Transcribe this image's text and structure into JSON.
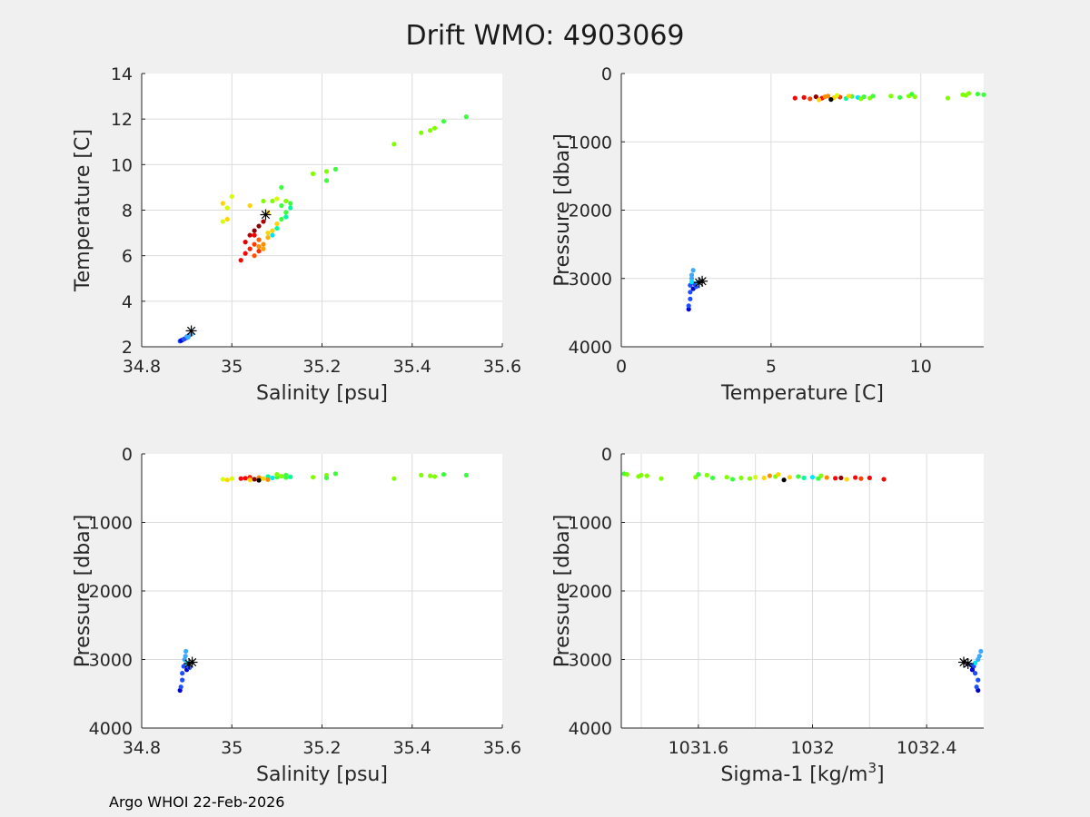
{
  "figure": {
    "title": "Drift WMO: 4903069",
    "footer": "Argo WHOI 22-Feb-2026"
  },
  "colors": {
    "background": "#f0f0f0",
    "plot_background": "#ffffff",
    "grid": "#dcdcdc",
    "axis": "#262626",
    "float_path": [
      "#8b0000",
      "#ff0000",
      "#ff8c00",
      "#ffd400",
      "#d4ff00",
      "#7fff00",
      "#3cff3c",
      "#00ff9c",
      "#00e5ff",
      "#3aaaff",
      "#1e4fff",
      "#0000cd"
    ],
    "marker_star": "#000000"
  },
  "chart_data": [
    {
      "type": "scatter",
      "id": "ts",
      "xlabel": "Salinity [psu]",
      "ylabel": "Temperature [C]",
      "xlim": [
        34.8,
        35.6
      ],
      "ylim": [
        2,
        14
      ],
      "y_reversed": false,
      "xticks": [
        34.8,
        35,
        35.2,
        35.4,
        35.6
      ],
      "xticklabels": [
        "34.8",
        "35",
        "35.2",
        "35.4",
        "35.6"
      ],
      "yticks": [
        2,
        4,
        6,
        8,
        10,
        12,
        14
      ],
      "yticklabels": [
        "2",
        "4",
        "6",
        "8",
        "10",
        "12",
        "14"
      ],
      "xgrid": [
        35,
        35.2,
        35.4
      ],
      "ygrid": [
        4,
        6,
        8,
        10,
        12
      ],
      "points": [
        [
          35.02,
          5.8,
          "#ff0000"
        ],
        [
          35.03,
          6.1,
          "#ff0000"
        ],
        [
          35.04,
          6.3,
          "#ff2000"
        ],
        [
          35.05,
          6.5,
          "#ff4000"
        ],
        [
          35.06,
          6.7,
          "#ff6000"
        ],
        [
          35.03,
          6.6,
          "#e00000"
        ],
        [
          35.04,
          6.9,
          "#c00000"
        ],
        [
          35.05,
          7.1,
          "#8b0000"
        ],
        [
          35.06,
          7.3,
          "#8b0000"
        ],
        [
          35.07,
          7.5,
          "#b00000"
        ],
        [
          35.06,
          6.2,
          "#ff3000"
        ],
        [
          35.07,
          6.5,
          "#ff8c00"
        ],
        [
          35.08,
          6.8,
          "#ffb000"
        ],
        [
          35.09,
          7.1,
          "#ffd400"
        ],
        [
          35.1,
          7.4,
          "#ffd400"
        ],
        [
          35.05,
          6.0,
          "#ff5000"
        ],
        [
          35.07,
          6.3,
          "#ffa000"
        ],
        [
          35.09,
          6.9,
          "#00e5ff"
        ],
        [
          35.1,
          7.2,
          "#00ff9c"
        ],
        [
          35.11,
          7.6,
          "#3cff3c"
        ],
        [
          35.12,
          7.9,
          "#3cff3c"
        ],
        [
          35.13,
          8.1,
          "#00ff9c"
        ],
        [
          35.13,
          8.3,
          "#3cff3c"
        ],
        [
          35.12,
          8.4,
          "#7fff00"
        ],
        [
          35.1,
          8.5,
          "#d4ff00"
        ],
        [
          35.09,
          8.4,
          "#7fff00"
        ],
        [
          35.11,
          8.2,
          "#3cff3c"
        ],
        [
          35.12,
          7.7,
          "#00ff9c"
        ],
        [
          35.08,
          7.0,
          "#ffd400"
        ],
        [
          35.06,
          6.4,
          "#ff8c00"
        ],
        [
          35.11,
          9.0,
          "#3cff3c"
        ],
        [
          35.07,
          8.4,
          "#7fff00"
        ],
        [
          35.04,
          8.2,
          "#ffd400"
        ],
        [
          35.08,
          7.9,
          "#ffd400"
        ],
        [
          35.05,
          6.9,
          "#ff0000"
        ],
        [
          34.98,
          8.3,
          "#ffd400"
        ],
        [
          34.99,
          8.1,
          "#d4ff00"
        ],
        [
          34.99,
          7.6,
          "#ffd400"
        ],
        [
          35.0,
          8.6,
          "#d4ff00"
        ],
        [
          34.98,
          7.5,
          "#d4ff00"
        ],
        [
          35.18,
          9.6,
          "#7fff00"
        ],
        [
          35.21,
          9.7,
          "#7fff00"
        ],
        [
          35.21,
          9.3,
          "#3cff3c"
        ],
        [
          35.23,
          9.8,
          "#3cff3c"
        ],
        [
          35.36,
          10.9,
          "#7fff00"
        ],
        [
          35.42,
          11.4,
          "#7fff00"
        ],
        [
          35.44,
          11.5,
          "#7fff00"
        ],
        [
          35.45,
          11.6,
          "#7fff00"
        ],
        [
          35.47,
          11.9,
          "#3cff3c"
        ],
        [
          35.52,
          12.1,
          "#3cff3c"
        ],
        [
          34.885,
          2.25,
          "#1e4fff"
        ],
        [
          34.89,
          2.3,
          "#1e4fff"
        ],
        [
          34.895,
          2.35,
          "#0000cd"
        ],
        [
          34.9,
          2.4,
          "#1e4fff"
        ],
        [
          34.9,
          2.45,
          "#3aaaff"
        ],
        [
          34.905,
          2.5,
          "#1e4fff"
        ],
        [
          34.91,
          2.55,
          "#3aaaff"
        ],
        [
          34.888,
          2.28,
          "#0000cd"
        ],
        [
          34.893,
          2.33,
          "#1e4fff"
        ],
        [
          34.903,
          2.42,
          "#3aaaff"
        ]
      ],
      "stars": [
        [
          35.075,
          7.8
        ],
        [
          34.91,
          2.7
        ]
      ]
    },
    {
      "type": "scatter",
      "id": "tp",
      "xlabel": "Temperature [C]",
      "ylabel": "Pressure [dbar]",
      "xlim": [
        0,
        12.1
      ],
      "ylim": [
        0,
        4000
      ],
      "y_reversed": true,
      "xticks": [
        0,
        5,
        10
      ],
      "xticklabels": [
        "0",
        "5",
        "10"
      ],
      "yticks": [
        0,
        1000,
        2000,
        3000,
        4000
      ],
      "yticklabels": [
        "0",
        "1000",
        "2000",
        "3000",
        "4000"
      ],
      "xgrid": [
        5,
        10
      ],
      "ygrid": [
        1000,
        2000,
        3000
      ],
      "points": [
        [
          5.8,
          360,
          "#ff0000"
        ],
        [
          6.1,
          350,
          "#ff0000"
        ],
        [
          6.3,
          370,
          "#ff4000"
        ],
        [
          6.5,
          340,
          "#8b0000"
        ],
        [
          6.7,
          360,
          "#ff0000"
        ],
        [
          6.9,
          330,
          "#ff8c00"
        ],
        [
          7.1,
          355,
          "#ffd400"
        ],
        [
          7.3,
          345,
          "#ff4000"
        ],
        [
          7.5,
          365,
          "#00ff9c"
        ],
        [
          7.7,
          335,
          "#3cff3c"
        ],
        [
          7.9,
          350,
          "#00e5ff"
        ],
        [
          8.1,
          340,
          "#3cff3c"
        ],
        [
          8.3,
          360,
          "#7fff00"
        ],
        [
          8.4,
          330,
          "#3cff3c"
        ],
        [
          7.0,
          380,
          "#000000"
        ],
        [
          6.6,
          385,
          "#ffd400"
        ],
        [
          7.2,
          320,
          "#d4ff00"
        ],
        [
          7.6,
          330,
          "#ffd400"
        ],
        [
          8.0,
          370,
          "#7fff00"
        ],
        [
          6.8,
          340,
          "#ff8c00"
        ],
        [
          9.0,
          330,
          "#7fff00"
        ],
        [
          9.3,
          350,
          "#3cff3c"
        ],
        [
          9.6,
          330,
          "#7fff00"
        ],
        [
          9.7,
          300,
          "#3cff3c"
        ],
        [
          9.8,
          340,
          "#7fff00"
        ],
        [
          10.9,
          360,
          "#7fff00"
        ],
        [
          11.4,
          310,
          "#7fff00"
        ],
        [
          11.5,
          320,
          "#7fff00"
        ],
        [
          11.6,
          290,
          "#7fff00"
        ],
        [
          11.9,
          300,
          "#3cff3c"
        ],
        [
          12.1,
          310,
          "#3cff3c"
        ],
        [
          2.25,
          3450,
          "#0000cd"
        ],
        [
          2.25,
          3400,
          "#1e4fff"
        ],
        [
          2.3,
          3200,
          "#1e4fff"
        ],
        [
          2.3,
          3100,
          "#1e4fff"
        ],
        [
          2.35,
          3000,
          "#3aaaff"
        ],
        [
          2.35,
          2950,
          "#3aaaff"
        ],
        [
          2.4,
          2880,
          "#3aaaff"
        ],
        [
          2.4,
          3150,
          "#0000cd"
        ],
        [
          2.45,
          3080,
          "#1e4fff"
        ],
        [
          2.5,
          3120,
          "#1e4fff"
        ],
        [
          2.55,
          3060,
          "#3aaaff"
        ],
        [
          2.3,
          3300,
          "#1e4fff"
        ],
        [
          2.35,
          3050,
          "#00e5ff"
        ]
      ],
      "stars": [
        [
          2.6,
          3060
        ],
        [
          2.7,
          3040
        ]
      ]
    },
    {
      "type": "scatter",
      "id": "sp",
      "xlabel": "Salinity [psu]",
      "ylabel": "Pressure [dbar]",
      "xlim": [
        34.8,
        35.6
      ],
      "ylim": [
        0,
        4000
      ],
      "y_reversed": true,
      "xticks": [
        34.8,
        35,
        35.2,
        35.4,
        35.6
      ],
      "xticklabels": [
        "34.8",
        "35",
        "35.2",
        "35.4",
        "35.6"
      ],
      "yticks": [
        0,
        1000,
        2000,
        3000,
        4000
      ],
      "yticklabels": [
        "0",
        "1000",
        "2000",
        "3000",
        "4000"
      ],
      "xgrid": [
        35,
        35.2,
        35.4
      ],
      "ygrid": [
        1000,
        2000,
        3000
      ],
      "points": [
        [
          34.98,
          370,
          "#d4ff00"
        ],
        [
          34.99,
          380,
          "#ffd400"
        ],
        [
          35.0,
          360,
          "#d4ff00"
        ],
        [
          35.02,
          360,
          "#ff0000"
        ],
        [
          35.03,
          355,
          "#ff0000"
        ],
        [
          35.04,
          340,
          "#ff2000"
        ],
        [
          35.05,
          370,
          "#8b0000"
        ],
        [
          35.06,
          345,
          "#ff8c00"
        ],
        [
          35.07,
          360,
          "#ffd400"
        ],
        [
          35.08,
          330,
          "#00ff9c"
        ],
        [
          35.09,
          350,
          "#00e5ff"
        ],
        [
          35.1,
          340,
          "#3cff3c"
        ],
        [
          35.11,
          325,
          "#7fff00"
        ],
        [
          35.12,
          345,
          "#3cff3c"
        ],
        [
          35.13,
          335,
          "#00ff9c"
        ],
        [
          35.06,
          385,
          "#000000"
        ],
        [
          35.04,
          380,
          "#ffd400"
        ],
        [
          35.08,
          375,
          "#ff8c00"
        ],
        [
          35.1,
          300,
          "#7fff00"
        ],
        [
          35.12,
          310,
          "#3cff3c"
        ],
        [
          35.18,
          340,
          "#7fff00"
        ],
        [
          35.21,
          310,
          "#7fff00"
        ],
        [
          35.21,
          350,
          "#3cff3c"
        ],
        [
          35.23,
          290,
          "#3cff3c"
        ],
        [
          35.36,
          360,
          "#7fff00"
        ],
        [
          35.42,
          310,
          "#7fff00"
        ],
        [
          35.44,
          320,
          "#7fff00"
        ],
        [
          35.45,
          330,
          "#7fff00"
        ],
        [
          35.47,
          300,
          "#3cff3c"
        ],
        [
          35.52,
          310,
          "#3cff3c"
        ],
        [
          34.885,
          3450,
          "#0000cd"
        ],
        [
          34.887,
          3400,
          "#1e4fff"
        ],
        [
          34.89,
          3200,
          "#1e4fff"
        ],
        [
          34.893,
          3100,
          "#1e4fff"
        ],
        [
          34.895,
          3000,
          "#3aaaff"
        ],
        [
          34.897,
          2950,
          "#3aaaff"
        ],
        [
          34.898,
          2880,
          "#3aaaff"
        ],
        [
          34.9,
          3150,
          "#0000cd"
        ],
        [
          34.903,
          3080,
          "#1e4fff"
        ],
        [
          34.906,
          3120,
          "#1e4fff"
        ],
        [
          34.89,
          3300,
          "#1e4fff"
        ],
        [
          34.9,
          3050,
          "#00e5ff"
        ]
      ],
      "stars": [
        [
          34.905,
          3060
        ],
        [
          34.912,
          3040
        ]
      ]
    },
    {
      "type": "scatter",
      "id": "dp",
      "xlabel": "Sigma-1 [kg/m",
      "xlabel_sup": "3",
      "xlabel_end": "]",
      "ylabel": "Pressure [dbar]",
      "xlim": [
        1031.33,
        1032.6
      ],
      "ylim": [
        0,
        4000
      ],
      "y_reversed": true,
      "xticks": [
        1031.6,
        1032,
        1032.4
      ],
      "xticklabels": [
        "1031.6",
        "1032",
        "1032.4"
      ],
      "yticks": [
        0,
        1000,
        2000,
        3000,
        4000
      ],
      "yticklabels": [
        "0",
        "1000",
        "2000",
        "3000",
        "4000"
      ],
      "xgrid": [
        1031.4,
        1031.6,
        1031.8,
        1032,
        1032.2,
        1032.4
      ],
      "ygrid": [
        1000,
        2000,
        3000
      ],
      "points": [
        [
          1031.34,
          290,
          "#3cff3c"
        ],
        [
          1031.35,
          300,
          "#7fff00"
        ],
        [
          1031.39,
          330,
          "#7fff00"
        ],
        [
          1031.4,
          310,
          "#7fff00"
        ],
        [
          1031.42,
          320,
          "#7fff00"
        ],
        [
          1031.47,
          360,
          "#7fff00"
        ],
        [
          1031.59,
          340,
          "#7fff00"
        ],
        [
          1031.6,
          300,
          "#3cff3c"
        ],
        [
          1031.63,
          310,
          "#7fff00"
        ],
        [
          1031.65,
          350,
          "#3cff3c"
        ],
        [
          1031.7,
          340,
          "#7fff00"
        ],
        [
          1031.72,
          370,
          "#3cff3c"
        ],
        [
          1031.75,
          350,
          "#7fff00"
        ],
        [
          1031.78,
          360,
          "#7fff00"
        ],
        [
          1031.8,
          340,
          "#d4ff00"
        ],
        [
          1031.83,
          350,
          "#ffd400"
        ],
        [
          1031.85,
          320,
          "#ff8c00"
        ],
        [
          1031.87,
          330,
          "#7fff00"
        ],
        [
          1031.9,
          380,
          "#000000"
        ],
        [
          1031.92,
          340,
          "#ffd400"
        ],
        [
          1031.95,
          330,
          "#3cff3c"
        ],
        [
          1031.97,
          350,
          "#00ff9c"
        ],
        [
          1032.0,
          340,
          "#00e5ff"
        ],
        [
          1032.02,
          360,
          "#3cff3c"
        ],
        [
          1032.05,
          345,
          "#ff8c00"
        ],
        [
          1032.08,
          355,
          "#ff0000"
        ],
        [
          1032.1,
          350,
          "#8b0000"
        ],
        [
          1032.12,
          370,
          "#ffd400"
        ],
        [
          1032.15,
          345,
          "#ff0000"
        ],
        [
          1032.17,
          360,
          "#ff4000"
        ],
        [
          1032.2,
          350,
          "#ff0000"
        ],
        [
          1032.25,
          370,
          "#ff0000"
        ],
        [
          1031.88,
          300,
          "#ffd400"
        ],
        [
          1032.03,
          320,
          "#7fff00"
        ],
        [
          1032.58,
          3450,
          "#0000cd"
        ],
        [
          1032.575,
          3400,
          "#1e4fff"
        ],
        [
          1032.57,
          3200,
          "#1e4fff"
        ],
        [
          1032.565,
          3100,
          "#1e4fff"
        ],
        [
          1032.58,
          3000,
          "#3aaaff"
        ],
        [
          1032.585,
          2950,
          "#3aaaff"
        ],
        [
          1032.59,
          2880,
          "#3aaaff"
        ],
        [
          1032.56,
          3150,
          "#0000cd"
        ],
        [
          1032.555,
          3080,
          "#1e4fff"
        ],
        [
          1032.57,
          3050,
          "#00e5ff"
        ],
        [
          1032.58,
          3300,
          "#1e4fff"
        ]
      ],
      "stars": [
        [
          1032.53,
          3040
        ],
        [
          1032.545,
          3060
        ]
      ]
    }
  ]
}
